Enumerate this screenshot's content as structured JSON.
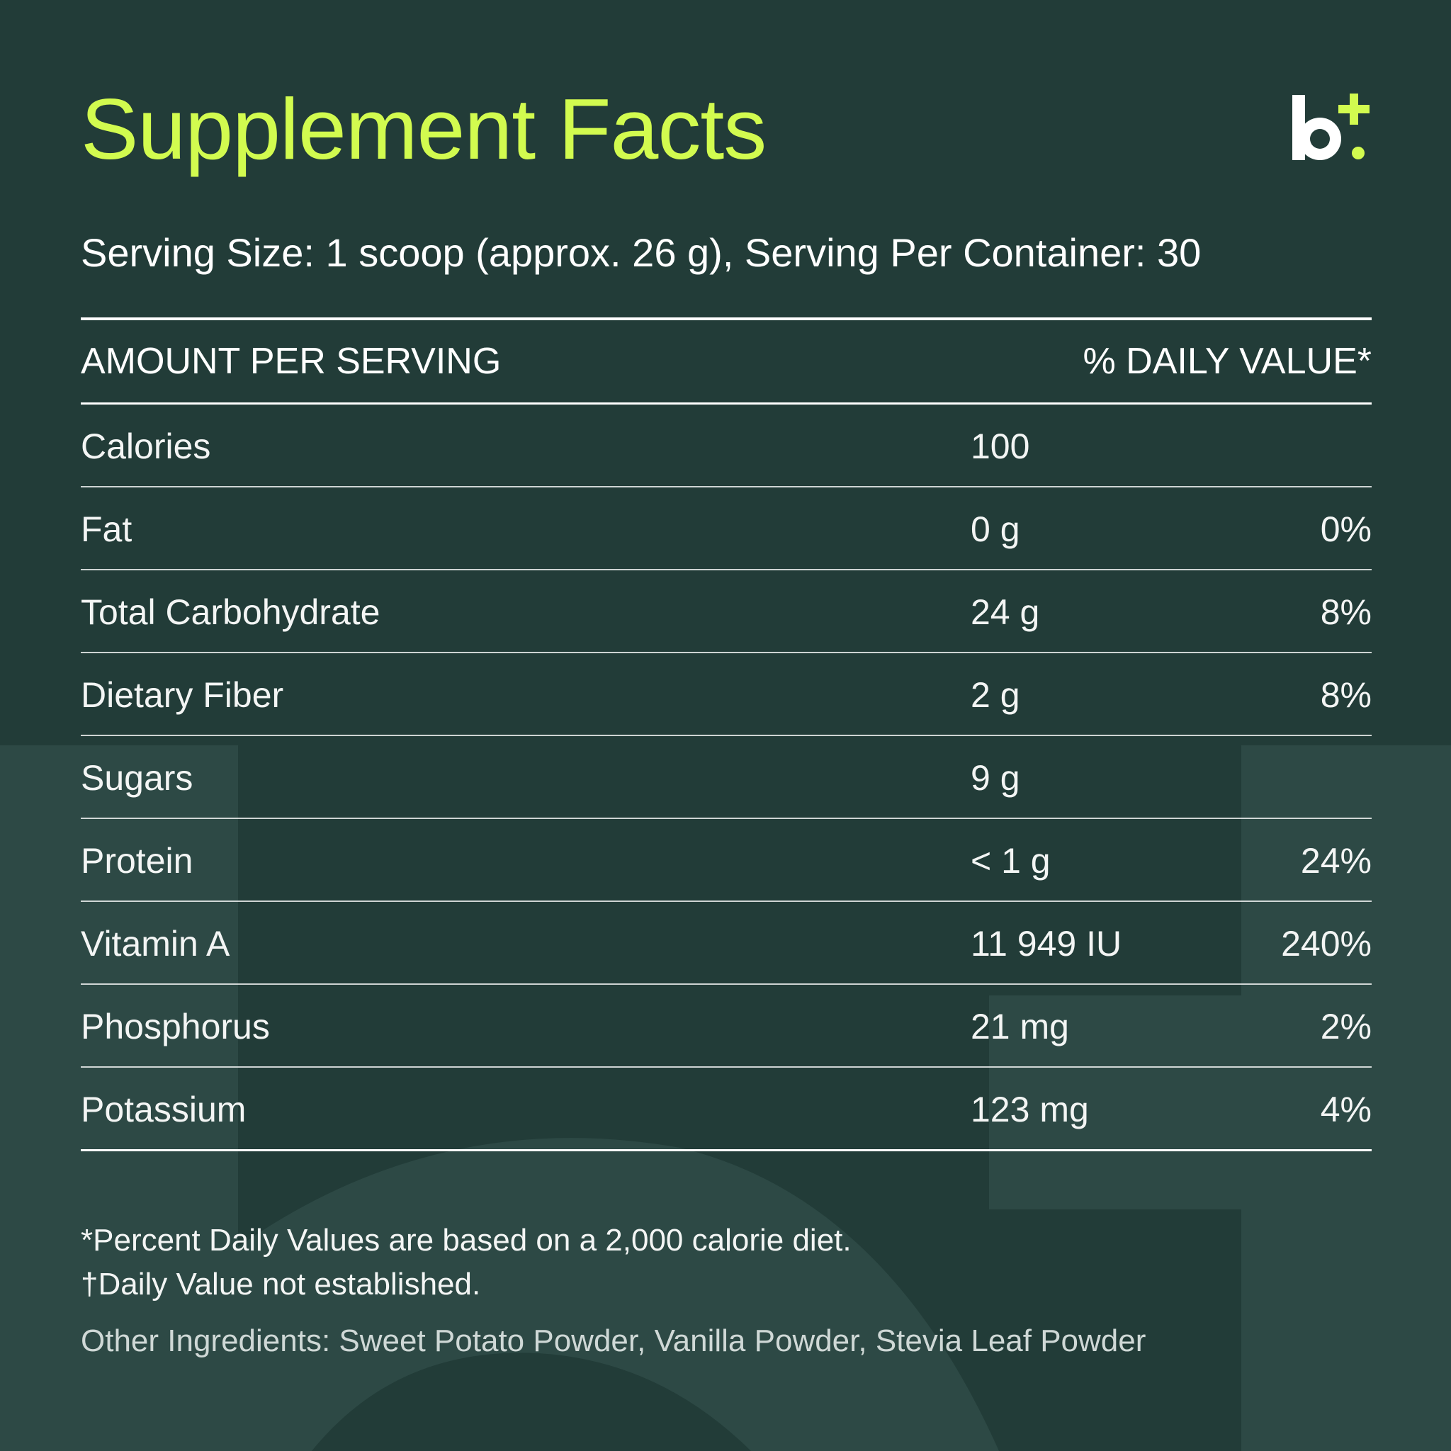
{
  "title": "Supplement Facts",
  "brand": {
    "logo_letter": "b",
    "logo_icon": "plus-icon",
    "logo_color": "#ffffff",
    "accent": "#d2fb4f"
  },
  "serving": {
    "text": "Serving Size: 1 scoop (approx. 26 g), Serving Per Container: 30"
  },
  "table": {
    "header": {
      "left": "AMOUNT PER SERVING",
      "right": "% DAILY VALUE*"
    },
    "rows": [
      {
        "name": "Calories",
        "amount": "100",
        "dv": ""
      },
      {
        "name": "Fat",
        "amount": "0 g",
        "dv": "0%"
      },
      {
        "name": "Total Carbohydrate",
        "amount": "24 g",
        "dv": "8%"
      },
      {
        "name": "Dietary Fiber",
        "amount": "2 g",
        "dv": "8%"
      },
      {
        "name": "Sugars",
        "amount": "9 g",
        "dv": ""
      },
      {
        "name": "Protein",
        "amount": "< 1 g",
        "dv": "24%"
      },
      {
        "name": "Vitamin A",
        "amount": "11 949 IU",
        "dv": "240%"
      },
      {
        "name": "Phosphorus",
        "amount": "21 mg",
        "dv": "2%"
      },
      {
        "name": "Potassium",
        "amount": "123 mg",
        "dv": "4%"
      }
    ]
  },
  "footnotes": [
    "*Percent Daily Values are based on a 2,000 calorie diet.",
    "†Daily Value not established."
  ],
  "ingredients": "Other Ingredients: Sweet Potato Powder, Vanilla Powder, Stevia Leaf Powder",
  "colors": {
    "background": "#223c38",
    "watermark": "#2d4945",
    "title": "#d2fb4f",
    "text": "#ffffff"
  }
}
